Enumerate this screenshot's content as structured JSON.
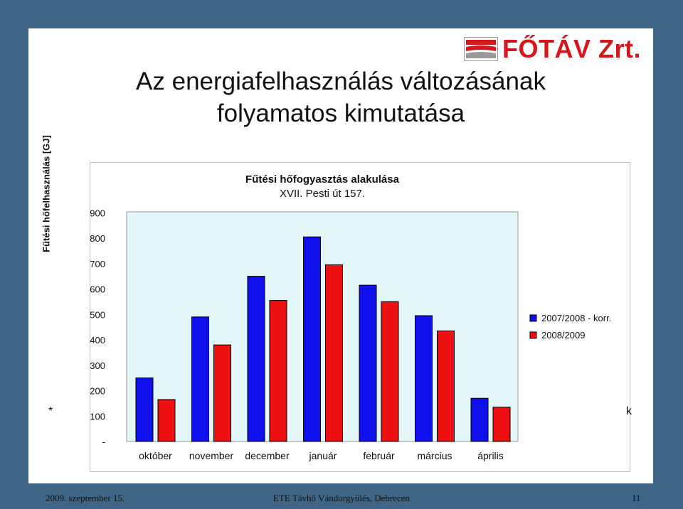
{
  "logo": {
    "text": "FŐTÁV Zrt."
  },
  "slide_title": {
    "line1": "Az energiafelhasználás változásának",
    "line2": "folyamatos kimutatása"
  },
  "side_marks": {
    "left": "*",
    "right": "k"
  },
  "chart_data": {
    "type": "bar",
    "title": "Fűtési hőfogyasztás alakulása",
    "subtitle": "XVII. Pesti út 157.",
    "ylabel": "Fűtési hőfelhasználás [GJ]",
    "xlabel": "",
    "categories": [
      "október",
      "november",
      "december",
      "január",
      "február",
      "március",
      "április"
    ],
    "series": [
      {
        "name": "2007/2008 - korr.",
        "color": "#1010ee",
        "values": [
          250,
          490,
          650,
          805,
          615,
          495,
          170
        ]
      },
      {
        "name": "2008/2009",
        "color": "#ee1010",
        "values": [
          165,
          380,
          555,
          695,
          550,
          435,
          135
        ]
      }
    ],
    "yticks": [
      "-",
      "100",
      "200",
      "300",
      "400",
      "500",
      "600",
      "700",
      "800",
      "900"
    ],
    "ylim": [
      0,
      900
    ],
    "grid": false,
    "legend": "right",
    "plot_bg": "#e3f7f9"
  },
  "footer": {
    "date": "2009. szeptember 15.",
    "event": "ETE Távhő Vándorgyűlés, Debrecen",
    "page": "11"
  }
}
